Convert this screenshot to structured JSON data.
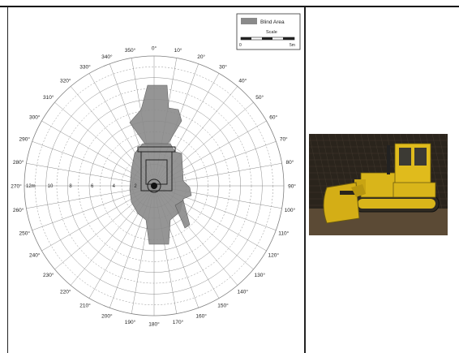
{
  "legend": {
    "blind_area_label": "Blind Area",
    "scale_label": "Scale",
    "scale_start": "0",
    "scale_end": "5m"
  },
  "compass": {
    "angles": [
      "0°",
      "10°",
      "20°",
      "30°",
      "40°",
      "50°",
      "60°",
      "70°",
      "80°",
      "90°",
      "100°",
      "110°",
      "120°",
      "130°",
      "140°",
      "150°",
      "160°",
      "170°",
      "180°",
      "190°",
      "200°",
      "210°",
      "220°",
      "230°",
      "240°",
      "250°",
      "260°",
      "270°",
      "280°",
      "290°",
      "300°",
      "310°",
      "320°",
      "330°",
      "340°",
      "350°"
    ],
    "radial_labels": [
      "12m",
      "10",
      "8",
      "6",
      "4",
      "2"
    ]
  },
  "colors": {
    "blind_area": "#8a8a8a",
    "grid": "#7f7f7f",
    "machine_yellow": "#d9b51a",
    "photo_background": "#2a241c"
  },
  "photo": {
    "subject": "bulldozer-photo"
  }
}
